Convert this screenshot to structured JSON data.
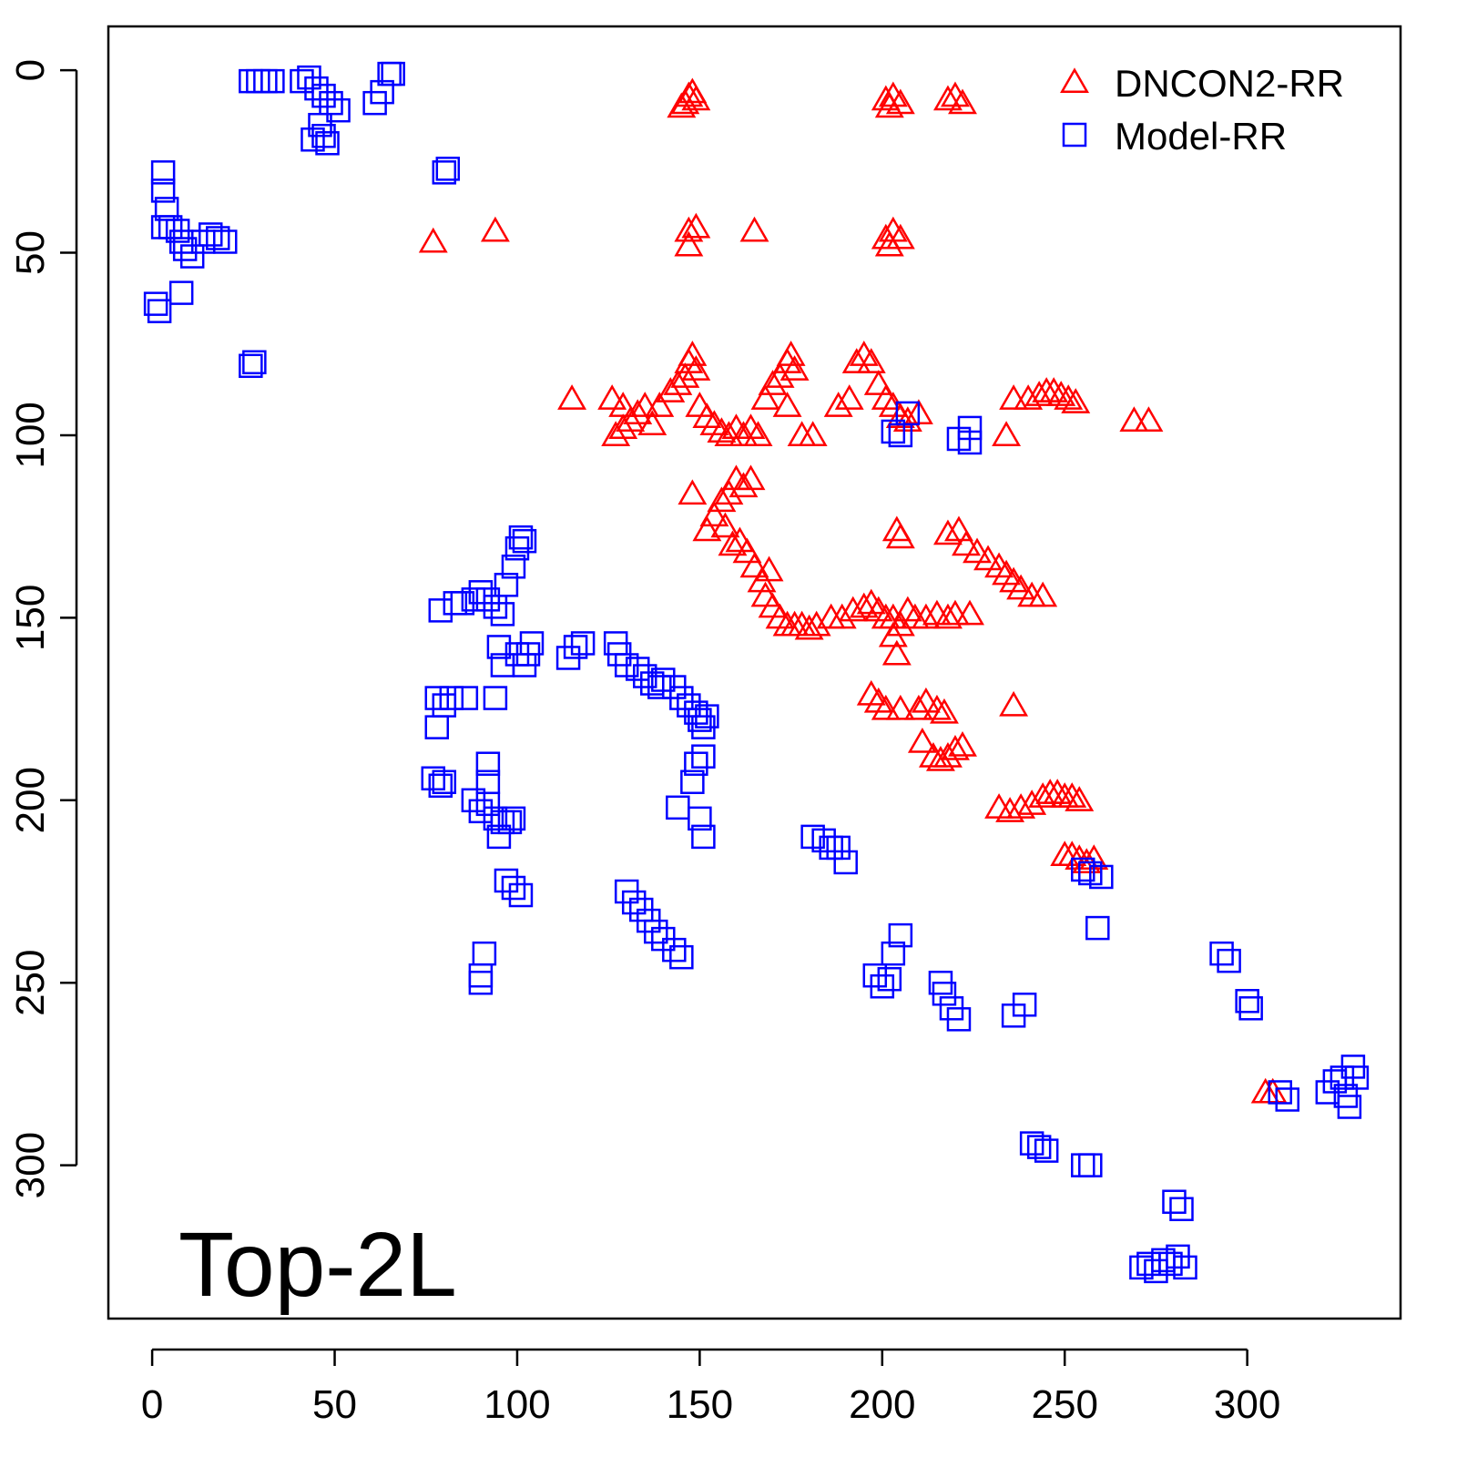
{
  "chart_data": {
    "type": "scatter",
    "title": "Top-2L",
    "xlabel": "",
    "ylabel": "",
    "xlim": [
      -12,
      342
    ],
    "ylim": [
      -12,
      342
    ],
    "y_reversed": true,
    "x_ticks": [
      "0",
      "50",
      "100",
      "150",
      "200",
      "250",
      "300"
    ],
    "y_ticks": [
      "0",
      "50",
      "100",
      "150",
      "200",
      "250",
      "300"
    ],
    "legend_position": "top-right",
    "series": [
      {
        "name": "DNCON2-RR",
        "marker": "triangle",
        "color": "#ff0000",
        "points": [
          [
            145,
            10
          ],
          [
            147,
            7
          ],
          [
            149,
            8
          ],
          [
            146,
            9
          ],
          [
            148,
            6
          ],
          [
            201,
            8
          ],
          [
            203,
            7
          ],
          [
            205,
            9
          ],
          [
            202,
            10
          ],
          [
            218,
            8
          ],
          [
            220,
            7
          ],
          [
            222,
            9
          ],
          [
            77,
            47
          ],
          [
            94,
            44
          ],
          [
            147,
            44
          ],
          [
            149,
            43
          ],
          [
            147,
            48
          ],
          [
            165,
            44
          ],
          [
            201,
            46
          ],
          [
            203,
            44
          ],
          [
            205,
            46
          ],
          [
            202,
            48
          ],
          [
            115,
            90
          ],
          [
            126,
            90
          ],
          [
            129,
            92
          ],
          [
            127,
            100
          ],
          [
            129,
            98
          ],
          [
            131,
            96
          ],
          [
            133,
            94
          ],
          [
            135,
            92
          ],
          [
            137,
            97
          ],
          [
            139,
            92
          ],
          [
            142,
            88
          ],
          [
            144,
            86
          ],
          [
            146,
            84
          ],
          [
            147,
            80
          ],
          [
            148,
            78
          ],
          [
            149,
            82
          ],
          [
            150,
            92
          ],
          [
            152,
            95
          ],
          [
            154,
            97
          ],
          [
            156,
            99
          ],
          [
            158,
            100
          ],
          [
            160,
            98
          ],
          [
            162,
            100
          ],
          [
            164,
            98
          ],
          [
            166,
            100
          ],
          [
            168,
            90
          ],
          [
            170,
            86
          ],
          [
            172,
            84
          ],
          [
            174,
            80
          ],
          [
            175,
            78
          ],
          [
            176,
            82
          ],
          [
            174,
            92
          ],
          [
            178,
            100
          ],
          [
            181,
            100
          ],
          [
            188,
            92
          ],
          [
            191,
            90
          ],
          [
            193,
            80
          ],
          [
            195,
            78
          ],
          [
            197,
            80
          ],
          [
            199,
            86
          ],
          [
            201,
            90
          ],
          [
            203,
            92
          ],
          [
            205,
            95
          ],
          [
            207,
            96
          ],
          [
            210,
            94
          ],
          [
            234,
            100
          ],
          [
            236,
            90
          ],
          [
            240,
            90
          ],
          [
            243,
            89
          ],
          [
            245,
            88
          ],
          [
            247,
            88
          ],
          [
            249,
            89
          ],
          [
            251,
            90
          ],
          [
            253,
            91
          ],
          [
            269,
            96
          ],
          [
            273,
            96
          ],
          [
            148,
            116
          ],
          [
            152,
            126
          ],
          [
            154,
            122
          ],
          [
            156,
            118
          ],
          [
            158,
            116
          ],
          [
            160,
            112
          ],
          [
            162,
            114
          ],
          [
            164,
            112
          ],
          [
            157,
            125
          ],
          [
            159,
            130
          ],
          [
            161,
            129
          ],
          [
            163,
            132
          ],
          [
            165,
            136
          ],
          [
            167,
            140
          ],
          [
            168,
            144
          ],
          [
            169,
            137
          ],
          [
            170,
            147
          ],
          [
            172,
            150
          ],
          [
            174,
            152
          ],
          [
            176,
            152
          ],
          [
            178,
            152
          ],
          [
            180,
            153
          ],
          [
            182,
            152
          ],
          [
            186,
            150
          ],
          [
            189,
            150
          ],
          [
            192,
            148
          ],
          [
            195,
            147
          ],
          [
            197,
            146
          ],
          [
            199,
            148
          ],
          [
            201,
            150
          ],
          [
            203,
            150
          ],
          [
            205,
            152
          ],
          [
            207,
            148
          ],
          [
            209,
            150
          ],
          [
            212,
            150
          ],
          [
            215,
            149
          ],
          [
            218,
            150
          ],
          [
            220,
            149
          ],
          [
            224,
            149
          ],
          [
            203,
            155
          ],
          [
            204,
            160
          ],
          [
            204,
            126
          ],
          [
            205,
            128
          ],
          [
            218,
            127
          ],
          [
            221,
            126
          ],
          [
            223,
            130
          ],
          [
            226,
            132
          ],
          [
            229,
            134
          ],
          [
            232,
            136
          ],
          [
            234,
            138
          ],
          [
            236,
            140
          ],
          [
            238,
            142
          ],
          [
            241,
            144
          ],
          [
            244,
            144
          ],
          [
            197,
            171
          ],
          [
            199,
            173
          ],
          [
            201,
            175
          ],
          [
            205,
            175
          ],
          [
            210,
            175
          ],
          [
            212,
            173
          ],
          [
            215,
            175
          ],
          [
            217,
            176
          ],
          [
            211,
            184
          ],
          [
            214,
            188
          ],
          [
            216,
            189
          ],
          [
            218,
            188
          ],
          [
            220,
            186
          ],
          [
            222,
            185
          ],
          [
            236,
            174
          ],
          [
            232,
            202
          ],
          [
            235,
            203
          ],
          [
            238,
            202
          ],
          [
            241,
            201
          ],
          [
            244,
            199
          ],
          [
            246,
            198
          ],
          [
            248,
            198
          ],
          [
            250,
            199
          ],
          [
            252,
            199
          ],
          [
            254,
            200
          ],
          [
            250,
            215
          ],
          [
            252,
            215
          ],
          [
            254,
            216
          ],
          [
            256,
            217
          ],
          [
            258,
            216
          ],
          [
            305,
            280
          ],
          [
            307,
            280
          ]
        ]
      },
      {
        "name": "Model-RR",
        "marker": "square",
        "color": "#0000ff",
        "points": [
          [
            27,
            3
          ],
          [
            29,
            3
          ],
          [
            31,
            3
          ],
          [
            33,
            3
          ],
          [
            41,
            3
          ],
          [
            43,
            2
          ],
          [
            45,
            5
          ],
          [
            47,
            7
          ],
          [
            49,
            9
          ],
          [
            51,
            11
          ],
          [
            46,
            15
          ],
          [
            47,
            18
          ],
          [
            44,
            19
          ],
          [
            61,
            9
          ],
          [
            63,
            6
          ],
          [
            65,
            1
          ],
          [
            66,
            1
          ],
          [
            48,
            20
          ],
          [
            80,
            28
          ],
          [
            81,
            27
          ],
          [
            3,
            28
          ],
          [
            3,
            33
          ],
          [
            4,
            38
          ],
          [
            3,
            43
          ],
          [
            5,
            43
          ],
          [
            7,
            44
          ],
          [
            8,
            47
          ],
          [
            9,
            49
          ],
          [
            11,
            51
          ],
          [
            14,
            47
          ],
          [
            16,
            45
          ],
          [
            18,
            46
          ],
          [
            20,
            47
          ],
          [
            1,
            64
          ],
          [
            2,
            66
          ],
          [
            8,
            61
          ],
          [
            27,
            81
          ],
          [
            28,
            80
          ],
          [
            79,
            148
          ],
          [
            83,
            146
          ],
          [
            85,
            146
          ],
          [
            88,
            145
          ],
          [
            90,
            143
          ],
          [
            92,
            145
          ],
          [
            94,
            147
          ],
          [
            96,
            149
          ],
          [
            97,
            141
          ],
          [
            100,
            131
          ],
          [
            101,
            128
          ],
          [
            102,
            129
          ],
          [
            99,
            136
          ],
          [
            95,
            158
          ],
          [
            96,
            163
          ],
          [
            100,
            160
          ],
          [
            102,
            163
          ],
          [
            103,
            160
          ],
          [
            104,
            157
          ],
          [
            78,
            172
          ],
          [
            80,
            174
          ],
          [
            82,
            172
          ],
          [
            86,
            172
          ],
          [
            78,
            180
          ],
          [
            94,
            172
          ],
          [
            114,
            161
          ],
          [
            116,
            158
          ],
          [
            118,
            157
          ],
          [
            127,
            157
          ],
          [
            128,
            160
          ],
          [
            130,
            163
          ],
          [
            133,
            164
          ],
          [
            135,
            166
          ],
          [
            137,
            168
          ],
          [
            139,
            169
          ],
          [
            140,
            167
          ],
          [
            143,
            169
          ],
          [
            145,
            172
          ],
          [
            147,
            174
          ],
          [
            149,
            176
          ],
          [
            150,
            178
          ],
          [
            151,
            180
          ],
          [
            152,
            177
          ],
          [
            151,
            188
          ],
          [
            149,
            190
          ],
          [
            148,
            195
          ],
          [
            144,
            202
          ],
          [
            150,
            205
          ],
          [
            151,
            210
          ],
          [
            77,
            194
          ],
          [
            79,
            196
          ],
          [
            80,
            195
          ],
          [
            88,
            200
          ],
          [
            90,
            203
          ],
          [
            92,
            201
          ],
          [
            94,
            205
          ],
          [
            96,
            206
          ],
          [
            98,
            206
          ],
          [
            99,
            205
          ],
          [
            92,
            195
          ],
          [
            92,
            190
          ],
          [
            95,
            210
          ],
          [
            97,
            222
          ],
          [
            99,
            224
          ],
          [
            101,
            226
          ],
          [
            130,
            225
          ],
          [
            132,
            228
          ],
          [
            134,
            230
          ],
          [
            136,
            233
          ],
          [
            138,
            236
          ],
          [
            140,
            238
          ],
          [
            143,
            241
          ],
          [
            145,
            243
          ],
          [
            91,
            242
          ],
          [
            90,
            248
          ],
          [
            90,
            250
          ],
          [
            181,
            210
          ],
          [
            184,
            211
          ],
          [
            186,
            213
          ],
          [
            188,
            213
          ],
          [
            190,
            217
          ],
          [
            198,
            248
          ],
          [
            200,
            251
          ],
          [
            202,
            249
          ],
          [
            205,
            237
          ],
          [
            203,
            242
          ],
          [
            216,
            250
          ],
          [
            217,
            253
          ],
          [
            219,
            257
          ],
          [
            221,
            260
          ],
          [
            236,
            259
          ],
          [
            239,
            256
          ],
          [
            221,
            101
          ],
          [
            224,
            102
          ],
          [
            224,
            98
          ],
          [
            203,
            99
          ],
          [
            205,
            100
          ],
          [
            207,
            94
          ],
          [
            255,
            219
          ],
          [
            257,
            220
          ],
          [
            260,
            221
          ],
          [
            259,
            235
          ],
          [
            241,
            294
          ],
          [
            243,
            295
          ],
          [
            245,
            296
          ],
          [
            255,
            300
          ],
          [
            257,
            300
          ],
          [
            293,
            242
          ],
          [
            295,
            244
          ],
          [
            300,
            255
          ],
          [
            301,
            257
          ],
          [
            309,
            280
          ],
          [
            311,
            282
          ],
          [
            322,
            280
          ],
          [
            324,
            277
          ],
          [
            326,
            276
          ],
          [
            327,
            281
          ],
          [
            328,
            284
          ],
          [
            329,
            273
          ],
          [
            330,
            276
          ],
          [
            271,
            328
          ],
          [
            273,
            327
          ],
          [
            275,
            329
          ],
          [
            277,
            326
          ],
          [
            279,
            327
          ],
          [
            281,
            325
          ],
          [
            283,
            328
          ],
          [
            280,
            310
          ],
          [
            282,
            312
          ]
        ]
      }
    ]
  }
}
